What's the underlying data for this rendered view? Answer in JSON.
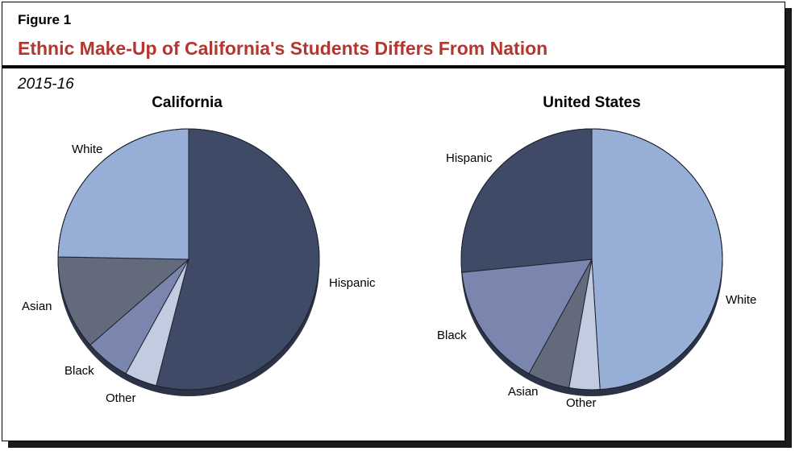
{
  "figure": {
    "label": "Figure 1",
    "title": "Ethnic Make-Up of California's Students Differs From Nation",
    "subtitle": "2015-16"
  },
  "colors": {
    "Hispanic": "#3f4a66",
    "White": "#97afd6",
    "Black": "#7a86ad",
    "Asian": "#636a7c",
    "Other": "#c1cce0",
    "title_red": "#b3362f"
  },
  "chart_data": [
    {
      "type": "pie",
      "title": "California",
      "slices": [
        {
          "label": "Hispanic",
          "value": 54.0
        },
        {
          "label": "Other",
          "value": 4.0
        },
        {
          "label": "Black",
          "value": 5.6
        },
        {
          "label": "Asian",
          "value": 11.7
        },
        {
          "label": "White",
          "value": 24.7
        }
      ]
    },
    {
      "type": "pie",
      "title": "United States",
      "slices": [
        {
          "label": "White",
          "value": 49.0
        },
        {
          "label": "Other",
          "value": 3.8
        },
        {
          "label": "Asian",
          "value": 5.2
        },
        {
          "label": "Black",
          "value": 15.4
        },
        {
          "label": "Hispanic",
          "value": 26.6
        }
      ]
    }
  ]
}
